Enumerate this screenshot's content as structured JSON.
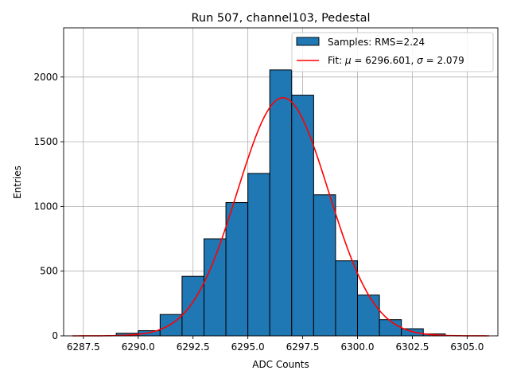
{
  "chart_data": {
    "type": "bar",
    "title": "Run 507, channel103, Pedestal",
    "xlabel": "ADC Counts",
    "ylabel": "Entries",
    "xlim": [
      6286.6,
      6306.4
    ],
    "ylim": [
      0,
      2380
    ],
    "xticks": [
      6287.5,
      6290.0,
      6292.5,
      6295.0,
      6297.5,
      6300.0,
      6302.5,
      6305.0
    ],
    "xtick_labels": [
      "6287.5",
      "6290.0",
      "6292.5",
      "6295.0",
      "6297.5",
      "6300.0",
      "6302.5",
      "6305.0"
    ],
    "yticks": [
      0,
      500,
      1000,
      1500,
      2000
    ],
    "ytick_labels": [
      "0",
      "500",
      "1000",
      "1500",
      "2000"
    ],
    "grid": true,
    "legend_position": "top-right",
    "histogram": {
      "bin_edges": [
        6289,
        6290,
        6291,
        6292,
        6293,
        6294,
        6295,
        6296,
        6297,
        6298,
        6299,
        6300,
        6301,
        6302,
        6303,
        6304
      ],
      "values": [
        20,
        40,
        165,
        460,
        750,
        1030,
        1255,
        2055,
        1860,
        1090,
        580,
        315,
        125,
        55,
        15
      ],
      "color": "#1f77b4",
      "edge_color": "#000000"
    },
    "fit": {
      "type": "gaussian",
      "mu": 6296.601,
      "sigma": 2.079,
      "amplitude": 1840,
      "x_range": [
        6287,
        6306
      ],
      "color": "#ff0000"
    },
    "legend": [
      {
        "label": "Samples: RMS=2.24",
        "kind": "patch",
        "color": "#1f77b4"
      },
      {
        "label_prefix": "Fit: ",
        "mu_symbol": "μ",
        "mu_text": " = 6296.601, ",
        "sigma_symbol": "σ",
        "sigma_text": " = 2.079",
        "kind": "line",
        "color": "#ff0000"
      }
    ]
  }
}
